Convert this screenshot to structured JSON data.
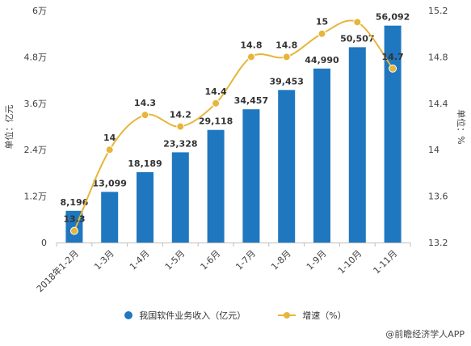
{
  "chart_data": {
    "type": "bar+line",
    "categories": [
      "2018年1-2月",
      "1-3月",
      "1-4月",
      "1-5月",
      "1-6月",
      "1-7月",
      "1-8月",
      "1-9月",
      "1-10月",
      "1-11月"
    ],
    "series": [
      {
        "name": "我国软件业务收入（亿元）",
        "type": "bar",
        "axis": "left",
        "values": [
          8196,
          13099,
          18189,
          23328,
          29118,
          34457,
          39453,
          44990,
          50507,
          56092
        ],
        "labels": [
          "8,196",
          "13,099",
          "18,189",
          "23,328",
          "29,118",
          "34,457",
          "39,453",
          "44,990",
          "50,507",
          "56,092"
        ]
      },
      {
        "name": "增速（%）",
        "type": "line",
        "axis": "right",
        "values": [
          13.3,
          14,
          14.3,
          14.2,
          14.4,
          14.8,
          14.8,
          15,
          15.1,
          14.7
        ],
        "labels": [
          "13.3",
          "14",
          "14.3",
          "14.2",
          "14.4",
          "14.8",
          "14.8",
          "15",
          "",
          "14.7"
        ]
      }
    ],
    "ylabel_left": "单位：亿元",
    "ylabel_right": "单位：%",
    "ylim_left": [
      0,
      60000
    ],
    "yticks_left": [
      0,
      12000,
      24000,
      36000,
      48000,
      60000
    ],
    "ytick_labels_left": [
      "0",
      "1.2万",
      "2.4万",
      "3.6万",
      "4.8万",
      "6万"
    ],
    "ylim_right": [
      13.2,
      15.2
    ],
    "yticks_right": [
      13.2,
      13.6,
      14,
      14.4,
      14.8,
      15.2
    ],
    "ytick_labels_right": [
      "13.2",
      "13.6",
      "14",
      "14.4",
      "14.8",
      "15.2"
    ],
    "grid": false,
    "legend": "bottom",
    "colors": {
      "bar": "#1f77c0",
      "line": "#e8b53b"
    }
  },
  "source_text": "@前瞻经济学人APP"
}
